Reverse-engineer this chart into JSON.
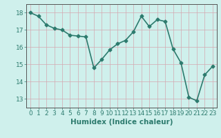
{
  "x": [
    0,
    1,
    2,
    3,
    4,
    5,
    6,
    7,
    8,
    9,
    10,
    11,
    12,
    13,
    14,
    15,
    16,
    17,
    18,
    19,
    20,
    21,
    22,
    23
  ],
  "y": [
    18.0,
    17.8,
    17.3,
    17.1,
    17.0,
    16.7,
    16.65,
    16.6,
    14.8,
    15.3,
    15.85,
    16.2,
    16.4,
    16.9,
    17.8,
    17.2,
    17.6,
    17.5,
    15.9,
    15.1,
    13.1,
    12.9,
    14.4,
    14.9
  ],
  "line_color": "#2d7b6e",
  "marker": "D",
  "marker_size": 2.5,
  "bg_color": "#cff0ec",
  "grid_color": "#d4a8b0",
  "xlabel": "Humidex (Indice chaleur)",
  "xlim": [
    -0.5,
    23.5
  ],
  "ylim": [
    12.5,
    18.5
  ],
  "yticks": [
    13,
    14,
    15,
    16,
    17,
    18
  ],
  "xticks": [
    0,
    1,
    2,
    3,
    4,
    5,
    6,
    7,
    8,
    9,
    10,
    11,
    12,
    13,
    14,
    15,
    16,
    17,
    18,
    19,
    20,
    21,
    22,
    23
  ],
  "xlabel_fontsize": 7.5,
  "tick_fontsize": 6.5,
  "line_width": 1.2,
  "tick_color": "#2d7b6e",
  "spine_color": "#555555"
}
